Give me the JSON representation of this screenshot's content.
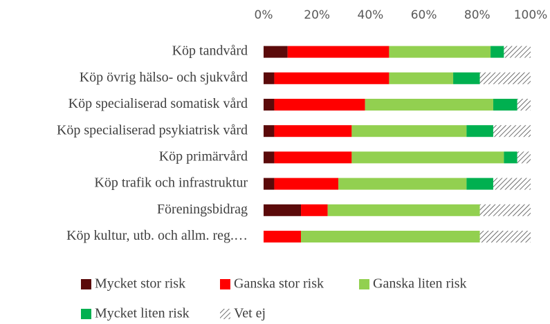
{
  "chart_data": {
    "type": "stacked-barh",
    "categories": [
      "Köp tandvård",
      "Köp övrig hälso- och sjukvård",
      "Köp specialiserad somatisk vård",
      "Köp specialiserad psykiatrisk vård",
      "Köp primärvård",
      "Köp trafik och infrastruktur",
      "Föreningsbidrag",
      "Köp kultur, utb. och allm. reg.…"
    ],
    "series": [
      {
        "name": "Mycket stor risk",
        "color": "#5b0a0a",
        "values": [
          9,
          4,
          4,
          4,
          4,
          4,
          14,
          0
        ]
      },
      {
        "name": "Ganska stor risk",
        "color": "#ff0000",
        "values": [
          38,
          43,
          34,
          29,
          29,
          24,
          10,
          14
        ]
      },
      {
        "name": "Ganska liten risk",
        "color": "#92d050",
        "values": [
          38,
          24,
          48,
          43,
          57,
          48,
          57,
          67
        ]
      },
      {
        "name": "Mycket liten risk",
        "color": "#00b050",
        "values": [
          5,
          10,
          9,
          10,
          5,
          10,
          0,
          0
        ]
      },
      {
        "name": "Vet ej",
        "color": "#404040",
        "pattern": "hatch",
        "values": [
          10,
          19,
          5,
          14,
          5,
          14,
          19,
          19
        ]
      }
    ],
    "xlim": [
      0,
      100
    ],
    "xticks": [
      {
        "value": 0,
        "label": "0%"
      },
      {
        "value": 20,
        "label": "20%"
      },
      {
        "value": 40,
        "label": "40%"
      },
      {
        "value": 60,
        "label": "60%"
      },
      {
        "value": 80,
        "label": "80%"
      },
      {
        "value": 100,
        "label": "100%"
      }
    ],
    "xaxis_position": "top",
    "grid": false
  }
}
